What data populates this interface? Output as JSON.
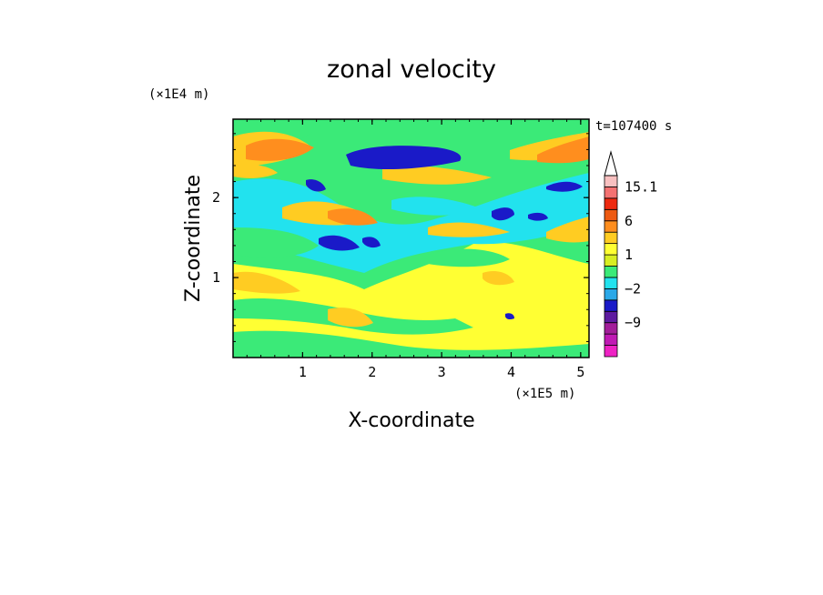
{
  "chart_data": {
    "type": "heatmap",
    "title": "zonal velocity",
    "xlabel": "X-coordinate",
    "ylabel": "Z-coordinate",
    "x_unit": "(×1E5 m)",
    "y_unit": "(×1E4 m)",
    "time_label": "t=107400 s",
    "xlim": [
      0,
      5.12
    ],
    "ylim": [
      0,
      2.98
    ],
    "x_ticks": [
      "1",
      "2",
      "3",
      "4",
      "5"
    ],
    "y_ticks": [
      "1",
      "2"
    ],
    "colorbar": {
      "levels": [
        -15,
        -12,
        -9,
        -6,
        -4,
        -2,
        -1,
        0,
        1,
        2,
        4,
        6,
        9,
        12,
        15.1
      ],
      "colors": [
        "#ee22c4",
        "#c01ab4",
        "#a31e9a",
        "#5e1ba0",
        "#1a1ac8",
        "#2aa8e8",
        "#22e2ee",
        "#3bea78",
        "#d8ee22",
        "#ffff33",
        "#ffcc22",
        "#ff8e1e",
        "#ee5a12",
        "#ee2a10",
        "#f47272",
        "#f8c0c0"
      ],
      "labels": [
        "15.1",
        "6",
        "1",
        "−2",
        "−9"
      ],
      "extend_max": true
    },
    "field_features": [
      {
        "kind": "jet",
        "sign": "negative",
        "x_range": [
          1.7,
          3.1
        ],
        "z": 2.6,
        "min": -9
      },
      {
        "kind": "band",
        "sign": "positive",
        "x_range": [
          0,
          2.2
        ],
        "z": 2.65,
        "max": 6
      },
      {
        "kind": "band",
        "sign": "negative",
        "x_range": [
          0.6,
          2.6
        ],
        "z": 1.5,
        "min": -6
      },
      {
        "kind": "band",
        "sign": "positive",
        "x_range": [
          1.0,
          2.6
        ],
        "z": 1.8,
        "max": 6
      },
      {
        "kind": "band",
        "sign": "negative",
        "x_range": [
          3.0,
          5.1
        ],
        "z": 2.0,
        "min": -9
      },
      {
        "kind": "band",
        "sign": "positive",
        "x_range": [
          4.3,
          5.1
        ],
        "z": 2.45,
        "max": 6
      },
      {
        "kind": "surface",
        "sign": "positive",
        "x_range": [
          0,
          5.1
        ],
        "z": 0.6,
        "max": 2
      }
    ]
  }
}
